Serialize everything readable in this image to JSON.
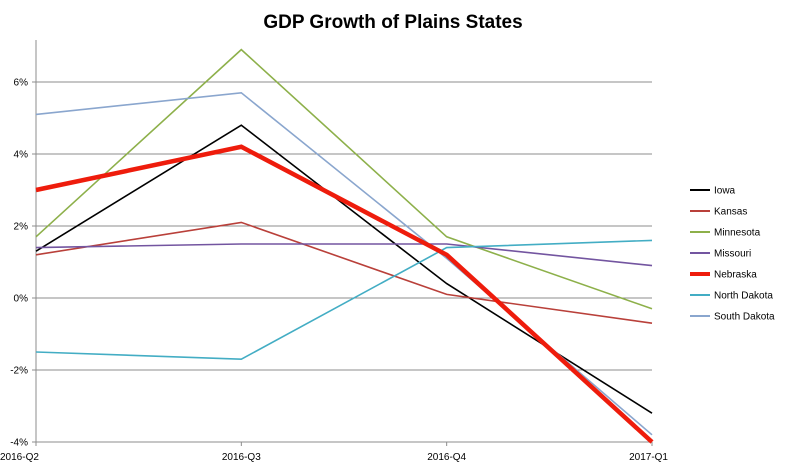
{
  "chart_data": {
    "type": "line",
    "title": "GDP Growth of Plains States",
    "xlabel": "",
    "ylabel": "",
    "categories": [
      "2016-Q2",
      "2016-Q3",
      "2016-Q4",
      "2017-Q1"
    ],
    "ylim": [
      -4,
      7
    ],
    "yticks": [
      -4,
      -2,
      0,
      2,
      4,
      6
    ],
    "ytick_labels": [
      "-4%",
      "-2%",
      "0%",
      "2%",
      "4%",
      "6%"
    ],
    "grid": true,
    "legend_position": "right",
    "series": [
      {
        "name": "Iowa",
        "color": "#000000",
        "width": 1.6,
        "values": [
          1.3,
          4.8,
          0.4,
          -3.2
        ]
      },
      {
        "name": "Kansas",
        "color": "#b9403a",
        "width": 1.6,
        "values": [
          1.2,
          2.1,
          0.1,
          -0.7
        ]
      },
      {
        "name": "Minnesota",
        "color": "#8db04a",
        "width": 1.6,
        "values": [
          1.7,
          6.9,
          1.7,
          -0.3
        ]
      },
      {
        "name": "Missouri",
        "color": "#7355a0",
        "width": 1.6,
        "values": [
          1.4,
          1.5,
          1.5,
          0.9
        ]
      },
      {
        "name": "Nebraska",
        "color": "#ee1c0c",
        "width": 4.5,
        "values": [
          3.0,
          4.2,
          1.2,
          -4.0
        ]
      },
      {
        "name": "North Dakota",
        "color": "#43adc4",
        "width": 1.6,
        "values": [
          -1.5,
          -1.7,
          1.4,
          1.6
        ]
      },
      {
        "name": "South Dakota",
        "color": "#8aa6ce",
        "width": 1.6,
        "values": [
          5.1,
          5.7,
          1.1,
          -3.8
        ]
      }
    ]
  }
}
